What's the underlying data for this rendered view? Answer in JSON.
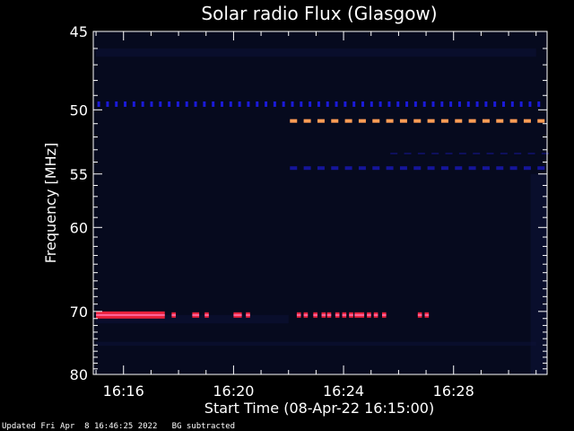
{
  "footer": {
    "updated": "Updated Fri Apr  8 16:46:25 2022",
    "bg_note": "BG subtracted"
  },
  "chart_data": {
    "type": "heatmap",
    "title": "Solar radio Flux (Glasgow)",
    "xlabel": "Start Time (08-Apr-22 16:15:00)",
    "ylabel": "Frequency [MHz]",
    "x_unit": "minutes since 16:15:00",
    "xlim": [
      -0.1,
      16.4
    ],
    "ylim": [
      45,
      80
    ],
    "y_scale": "reciprocal",
    "x_ticks": [
      {
        "value": 1,
        "label": "16:16"
      },
      {
        "value": 5,
        "label": "16:20"
      },
      {
        "value": 9,
        "label": "16:24"
      },
      {
        "value": 13,
        "label": "16:28"
      }
    ],
    "y_ticks": [
      45,
      50,
      55,
      60,
      70,
      80
    ],
    "background": "#060a1e",
    "colors": {
      "hot": "#ff9c55",
      "red": "#e8203a",
      "pink": "#ff6aa0",
      "blue": "#1a1ad8",
      "dimblue": "#15159a"
    },
    "features": [
      {
        "name": "continuous-band-70.5",
        "freq": 70.5,
        "x_start": 0.0,
        "x_end": 2.5,
        "color": "red"
      },
      {
        "name": "bursts-70.5",
        "freq": 70.5,
        "segments": [
          [
            2.75,
            2.9
          ],
          [
            3.5,
            3.75
          ],
          [
            3.95,
            4.1
          ],
          [
            5.0,
            5.3
          ],
          [
            5.45,
            5.6
          ],
          [
            7.3,
            7.45
          ],
          [
            7.55,
            7.7
          ],
          [
            7.9,
            8.05
          ],
          [
            8.2,
            8.35
          ],
          [
            8.4,
            8.55
          ],
          [
            8.7,
            8.85
          ],
          [
            8.95,
            9.1
          ],
          [
            9.2,
            9.35
          ],
          [
            9.4,
            9.75
          ],
          [
            9.85,
            10.0
          ],
          [
            10.1,
            10.25
          ],
          [
            10.4,
            10.55
          ],
          [
            11.7,
            11.85
          ],
          [
            11.95,
            12.1
          ]
        ],
        "color": "red"
      },
      {
        "name": "dotted-line-49.6",
        "freq": 49.6,
        "x_start": 0.0,
        "x_end": 16.2,
        "dash": "dots",
        "color": "blue"
      },
      {
        "name": "dashed-line-50.8",
        "freq": 50.8,
        "x_start": 7.05,
        "x_end": 16.4,
        "dash": "dashes",
        "color": "hot"
      },
      {
        "name": "dashed-line-54.5",
        "freq": 54.5,
        "x_start": 7.05,
        "x_end": 16.2,
        "dash": "dashes",
        "color": "dimblue"
      },
      {
        "name": "faint-line-53.3",
        "freq": 53.3,
        "x_start": 10.7,
        "x_end": 16.2,
        "dash": "faint",
        "color": "dimblue"
      }
    ]
  }
}
